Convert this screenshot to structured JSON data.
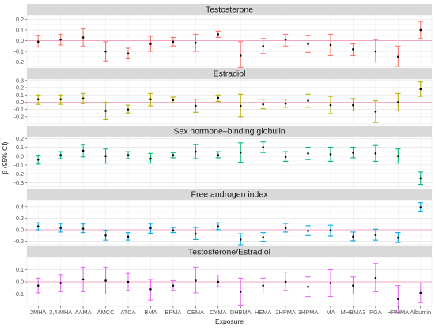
{
  "chart_data": {
    "type": "errorbar",
    "xlabel": "Exposure",
    "ylabel": "β (95% CI)",
    "categories": [
      "2MHA",
      "3,4-MHA",
      "AAMA",
      "AMCC",
      "ATCA",
      "BMA",
      "BPMA",
      "CEMA",
      "CYMA",
      "DHBMA",
      "HEMA",
      "2HPMA",
      "3HPMA",
      "MA",
      "MHBMA3",
      "PGA",
      "HPMMA",
      "Albumin"
    ],
    "tick_labels": [
      "2MHA",
      "3,4-MHA",
      "AAMA",
      "AMCC",
      "ATCA",
      "BMA",
      "BPMA",
      "CEMA",
      "CYMA",
      "DHBMA",
      "HEMA",
      "2HPMA",
      "3HPMA",
      "MA",
      "MHBMA3",
      "PGA",
      "HPMMA",
      "Albumin"
    ],
    "grid": true,
    "reference_line": 0,
    "panels": [
      {
        "title": "Testosterone",
        "color": "#F8766D",
        "ylim": [
          -0.24,
          0.24
        ],
        "yticks": [
          -0.2,
          -0.1,
          0.0,
          0.1,
          0.2
        ],
        "ytick_labels": [
          "-0.2",
          "-0.1",
          "0.0",
          "0.1",
          "0.2"
        ],
        "estimate": [
          -0.01,
          0.01,
          0.03,
          -0.1,
          -0.12,
          -0.03,
          -0.01,
          -0.02,
          0.06,
          -0.14,
          -0.05,
          0.01,
          -0.03,
          -0.04,
          -0.08,
          -0.1,
          -0.15,
          0.1
        ],
        "lower": [
          -0.06,
          -0.04,
          -0.05,
          -0.19,
          -0.17,
          -0.1,
          -0.05,
          -0.1,
          0.03,
          -0.25,
          -0.12,
          -0.05,
          -0.11,
          -0.14,
          -0.14,
          -0.2,
          -0.24,
          0.02
        ],
        "upper": [
          0.05,
          0.06,
          0.11,
          -0.01,
          -0.07,
          0.04,
          0.03,
          0.06,
          0.09,
          -0.01,
          0.02,
          0.06,
          0.05,
          0.06,
          -0.03,
          0.01,
          -0.05,
          0.18
        ]
      },
      {
        "title": "Estradiol",
        "color": "#B5B000",
        "ylim": [
          -0.3,
          0.32
        ],
        "yticks": [
          -0.2,
          -0.1,
          0.0,
          0.1,
          0.2,
          0.3
        ],
        "ytick_labels": [
          "-0.2",
          "-0.1",
          "0.0",
          "0.1",
          "0.2",
          "0.3"
        ],
        "estimate": [
          0.04,
          0.04,
          0.05,
          -0.12,
          -0.1,
          0.04,
          0.03,
          -0.05,
          0.06,
          -0.05,
          -0.03,
          -0.02,
          0.02,
          -0.04,
          -0.04,
          -0.13,
          0.0,
          0.18
        ],
        "lower": [
          -0.03,
          -0.03,
          -0.02,
          -0.24,
          -0.15,
          -0.05,
          -0.01,
          -0.14,
          0.01,
          -0.2,
          -0.09,
          -0.07,
          -0.07,
          -0.16,
          -0.12,
          -0.28,
          -0.12,
          0.08
        ],
        "upper": [
          0.1,
          0.1,
          0.12,
          0.0,
          -0.04,
          0.12,
          0.07,
          0.04,
          0.1,
          0.11,
          0.04,
          0.04,
          0.11,
          0.08,
          0.05,
          0.02,
          0.12,
          0.28
        ]
      },
      {
        "title": "Sex hormone–binding globulin",
        "color": "#00BA6A",
        "ylim": [
          -0.35,
          0.22
        ],
        "yticks": [
          -0.3,
          -0.2,
          -0.1,
          0.0,
          0.1,
          0.2
        ],
        "ytick_labels": [
          "-0.3",
          "-0.2",
          "-0.1",
          "0.0",
          "0.1",
          "0.2"
        ],
        "estimate": [
          -0.04,
          0.01,
          0.06,
          0.0,
          0.01,
          -0.03,
          0.01,
          0.05,
          0.01,
          0.04,
          0.1,
          -0.01,
          0.03,
          0.02,
          0.04,
          0.03,
          0.0,
          -0.25
        ],
        "lower": [
          -0.09,
          -0.03,
          -0.01,
          -0.08,
          -0.03,
          -0.08,
          -0.02,
          -0.03,
          -0.02,
          -0.07,
          0.04,
          -0.06,
          -0.04,
          -0.06,
          -0.02,
          -0.06,
          -0.08,
          -0.32
        ],
        "upper": [
          0.01,
          0.05,
          0.13,
          0.08,
          0.05,
          0.03,
          0.04,
          0.13,
          0.05,
          0.15,
          0.16,
          0.05,
          0.1,
          0.1,
          0.1,
          0.12,
          0.08,
          -0.18
        ]
      },
      {
        "title": "Free androgen index",
        "color": "#00A9E0",
        "ylim": [
          -0.26,
          0.52
        ],
        "yticks": [
          -0.2,
          0.0,
          0.2,
          0.4
        ],
        "ytick_labels": [
          "-0.2",
          "0.0",
          "0.2",
          "0.4"
        ],
        "estimate": [
          0.06,
          0.03,
          0.02,
          -0.1,
          -0.12,
          0.03,
          -0.01,
          -0.07,
          0.06,
          -0.17,
          -0.13,
          0.03,
          -0.02,
          -0.01,
          -0.12,
          -0.09,
          -0.14,
          0.39
        ],
        "lower": [
          0.0,
          -0.04,
          -0.05,
          -0.18,
          -0.18,
          -0.06,
          -0.05,
          -0.17,
          0.0,
          -0.26,
          -0.2,
          -0.04,
          -0.1,
          -0.11,
          -0.19,
          -0.18,
          -0.22,
          0.32
        ],
        "upper": [
          0.12,
          0.11,
          0.1,
          -0.01,
          -0.05,
          0.11,
          0.04,
          0.04,
          0.12,
          -0.07,
          -0.05,
          0.11,
          0.07,
          0.08,
          -0.04,
          0.01,
          -0.05,
          0.47
        ]
      },
      {
        "title": "Testosterone/Estradiol",
        "color": "#E76BF3",
        "ylim": [
          -0.2,
          0.2
        ],
        "yticks": [
          -0.1,
          0.0,
          0.1
        ],
        "ytick_labels": [
          "-0.1",
          "0.0",
          "0.1"
        ],
        "estimate": [
          -0.03,
          -0.01,
          0.02,
          0.01,
          0.0,
          -0.06,
          -0.03,
          0.01,
          0.0,
          -0.08,
          -0.03,
          0.0,
          -0.04,
          -0.01,
          -0.03,
          0.03,
          -0.14,
          -0.09
        ],
        "lower": [
          -0.09,
          -0.08,
          -0.08,
          -0.1,
          -0.07,
          -0.15,
          -0.07,
          -0.09,
          -0.04,
          -0.19,
          -0.1,
          -0.07,
          -0.12,
          -0.12,
          -0.1,
          -0.08,
          -0.25,
          -0.17
        ],
        "upper": [
          0.03,
          0.06,
          0.12,
          0.12,
          0.07,
          0.02,
          0.01,
          0.12,
          0.05,
          0.03,
          0.03,
          0.08,
          0.04,
          0.1,
          0.04,
          0.15,
          -0.03,
          -0.01
        ]
      }
    ]
  }
}
